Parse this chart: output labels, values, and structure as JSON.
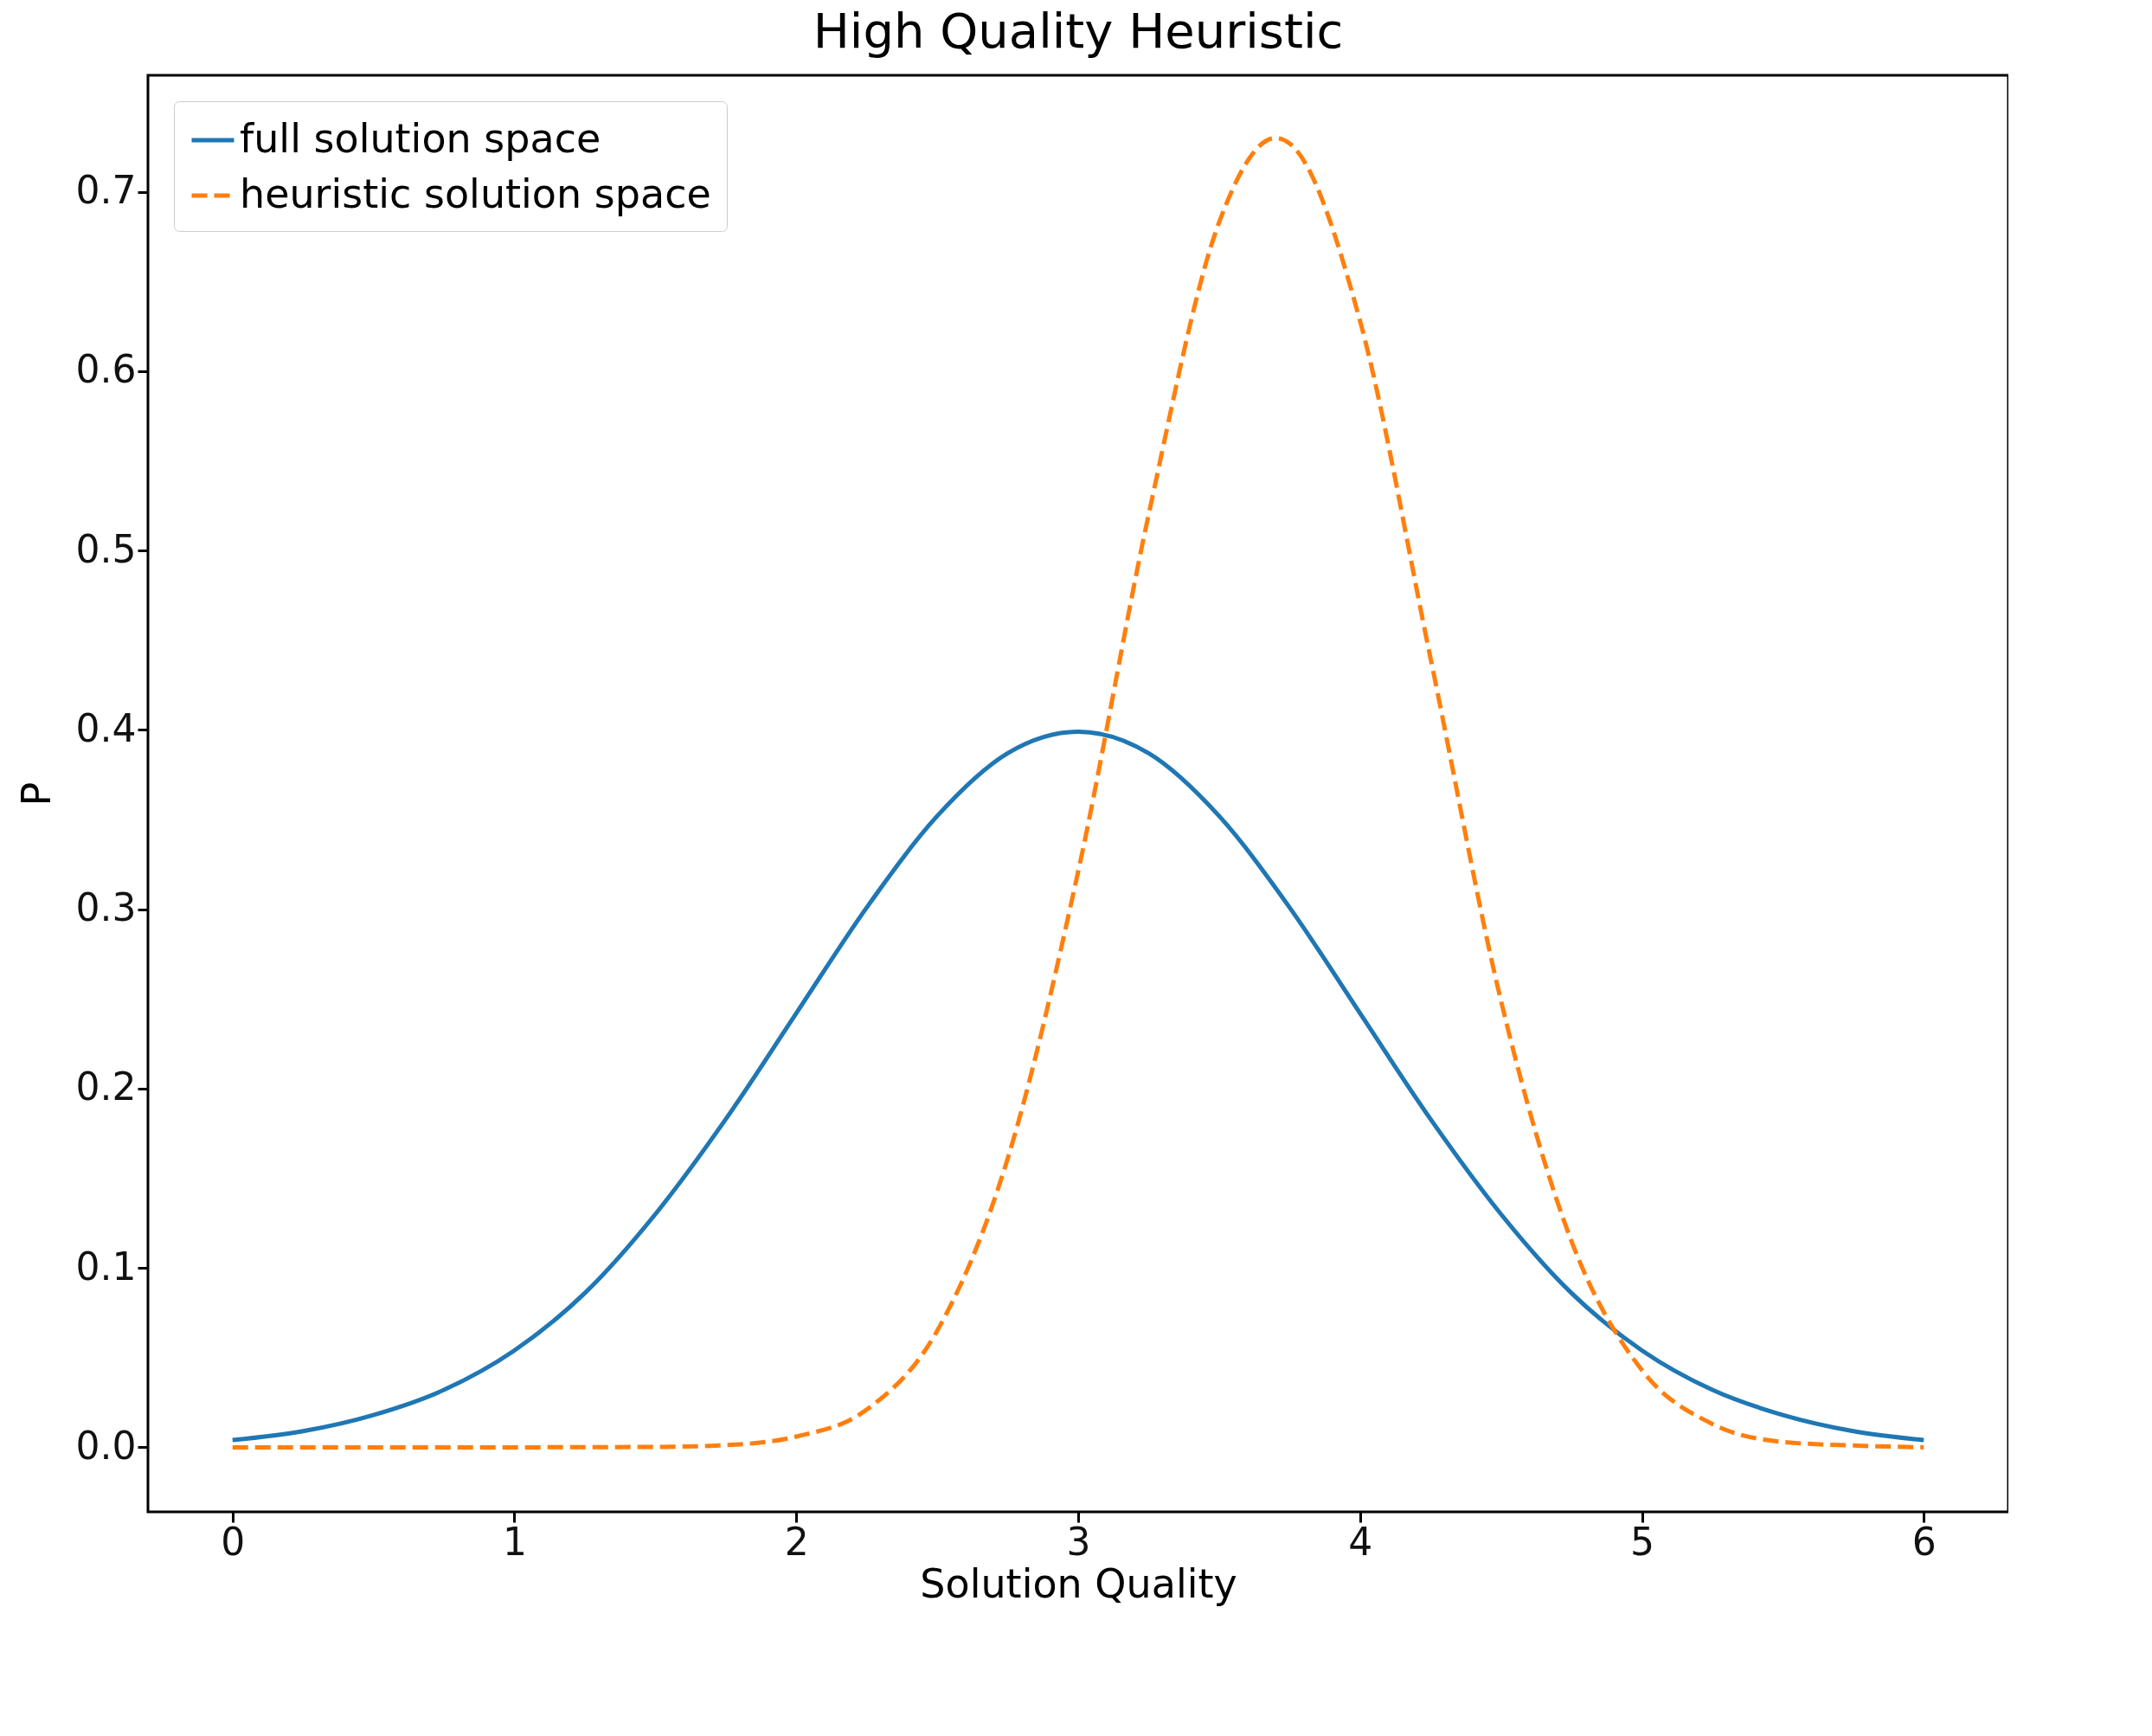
{
  "chart_data": {
    "type": "line",
    "title": "High Quality Heuristic",
    "xlabel": "Solution Quality",
    "ylabel": "P",
    "xlim": [
      -0.3,
      6.3
    ],
    "ylim": [
      -0.036,
      0.765
    ],
    "xticks": [
      0,
      1,
      2,
      3,
      4,
      5,
      6
    ],
    "yticks": [
      {
        "value": 0,
        "label": "0.0"
      },
      0.1,
      0.2,
      0.3,
      0.4,
      0.5,
      0.6,
      0.7
    ],
    "grid": false,
    "legend": "top left",
    "marker": "none",
    "series": [
      {
        "name": "full solution space",
        "color": "#1f77b4",
        "line_style": "solid",
        "x": [
          0,
          0.25,
          0.5,
          0.75,
          1,
          1.25,
          1.5,
          1.75,
          2,
          2.25,
          2.5,
          2.75,
          3,
          3.25,
          3.5,
          3.75,
          4,
          4.25,
          4.5,
          4.75,
          5,
          5.25,
          5.5,
          5.75,
          6
        ],
        "values": [
          0.004,
          0.009,
          0.018,
          0.032,
          0.054,
          0.086,
          0.13,
          0.183,
          0.242,
          0.301,
          0.352,
          0.387,
          0.399,
          0.387,
          0.352,
          0.301,
          0.242,
          0.183,
          0.13,
          0.086,
          0.054,
          0.032,
          0.018,
          0.009,
          0.004
        ]
      },
      {
        "name": "heuristic solution space",
        "color": "#ff7f0e",
        "line_style": "dashed",
        "x": [
          0,
          0.5,
          1,
          1.5,
          1.75,
          2,
          2.25,
          2.5,
          2.75,
          3,
          3.25,
          3.5,
          3.7,
          3.75,
          4,
          4.25,
          4.5,
          4.75,
          5,
          5.25,
          5.5,
          5.75,
          6
        ],
        "values": [
          0,
          0,
          0,
          0.0002,
          0.0012,
          0.006,
          0.021,
          0.065,
          0.161,
          0.321,
          0.52,
          0.683,
          0.73,
          0.727,
          0.628,
          0.44,
          0.249,
          0.115,
          0.043,
          0.013,
          0.003,
          0.001,
          0
        ]
      }
    ]
  }
}
